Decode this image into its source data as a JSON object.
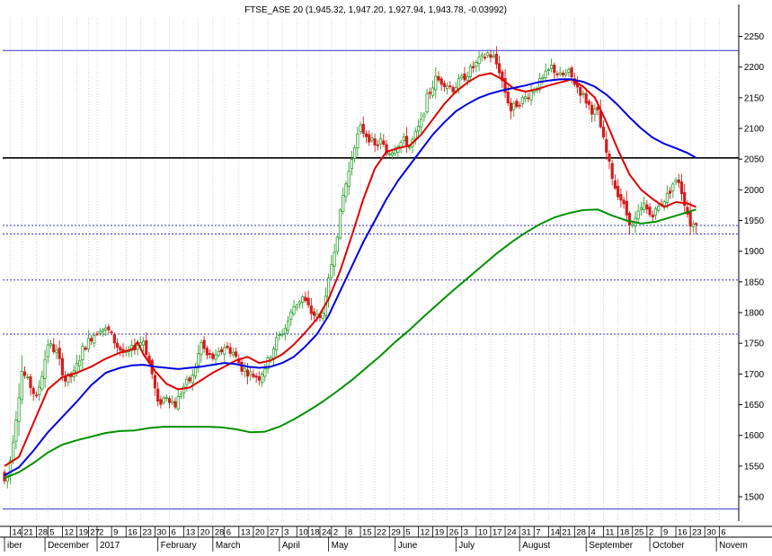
{
  "window": {
    "header_text": "FTSE_ASE 20 (1,945.32, 1,947.20, 1,927.94, 1,943.78, -0.03992)"
  },
  "colors": {
    "background": "#ffffff",
    "grid": "#b8b8b8",
    "bull_candle": "#2e9e2e",
    "bear_candle": "#d61c1c",
    "ma_short": "#e00000",
    "ma_mid": "#0000e0",
    "ma_long": "#009000",
    "hline_blue": "#3333cc",
    "hline_black": "#000000",
    "hline_dotted": "#3333cc"
  },
  "chart_data": {
    "type": "candlestick",
    "title": "FTSE_ASE 20 (1,945.32, 1,947.20, 1,927.94, 1,943.78, -0.03992)",
    "last_bar": {
      "open": 1945.32,
      "high": 1947.2,
      "low": 1927.94,
      "close": 1943.78,
      "change": -0.03992
    },
    "xlabel": "",
    "ylabel": "",
    "ylim": [
      1475,
      2260
    ],
    "y_ticks": [
      1500,
      1550,
      1600,
      1650,
      1700,
      1750,
      1800,
      1850,
      1900,
      1950,
      2000,
      2050,
      2100,
      2150,
      2200,
      2250
    ],
    "x_day_ticks": [
      {
        "label": "14",
        "slot": 2
      },
      {
        "label": "21",
        "slot": 6
      },
      {
        "label": "28",
        "slot": 11
      },
      {
        "label": "5",
        "slot": 15
      },
      {
        "label": "12",
        "slot": 20
      },
      {
        "label": "19",
        "slot": 25
      },
      {
        "label": "27",
        "slot": 29
      },
      {
        "label": "2",
        "slot": 32
      },
      {
        "label": "9",
        "slot": 37
      },
      {
        "label": "16",
        "slot": 42
      },
      {
        "label": "23",
        "slot": 47
      },
      {
        "label": "30",
        "slot": 52
      },
      {
        "label": "6",
        "slot": 57
      },
      {
        "label": "13",
        "slot": 62
      },
      {
        "label": "20",
        "slot": 67
      },
      {
        "label": "28",
        "slot": 72
      },
      {
        "label": "6",
        "slot": 76
      },
      {
        "label": "13",
        "slot": 81
      },
      {
        "label": "20",
        "slot": 86
      },
      {
        "label": "27",
        "slot": 91
      },
      {
        "label": "3",
        "slot": 96
      },
      {
        "label": "10",
        "slot": 101
      },
      {
        "label": "18",
        "slot": 105
      },
      {
        "label": "24",
        "slot": 109
      },
      {
        "label": "2",
        "slot": 113
      },
      {
        "label": "8",
        "slot": 118
      },
      {
        "label": "15",
        "slot": 123
      },
      {
        "label": "22",
        "slot": 128
      },
      {
        "label": "29",
        "slot": 133
      },
      {
        "label": "5",
        "slot": 138
      },
      {
        "label": "12",
        "slot": 143
      },
      {
        "label": "19",
        "slot": 148
      },
      {
        "label": "26",
        "slot": 153
      },
      {
        "label": "3",
        "slot": 158
      },
      {
        "label": "10",
        "slot": 163
      },
      {
        "label": "17",
        "slot": 168
      },
      {
        "label": "24",
        "slot": 173
      },
      {
        "label": "31",
        "slot": 178
      },
      {
        "label": "7",
        "slot": 183
      },
      {
        "label": "14",
        "slot": 188
      },
      {
        "label": "21",
        "slot": 192
      },
      {
        "label": "28",
        "slot": 197
      },
      {
        "label": "4",
        "slot": 202
      },
      {
        "label": "11",
        "slot": 207
      },
      {
        "label": "18",
        "slot": 212
      },
      {
        "label": "25",
        "slot": 217
      },
      {
        "label": "2",
        "slot": 222
      },
      {
        "label": "9",
        "slot": 227
      },
      {
        "label": "16",
        "slot": 232
      },
      {
        "label": "23",
        "slot": 237
      },
      {
        "label": "30",
        "slot": 242
      },
      {
        "label": "6",
        "slot": 247
      }
    ],
    "x_month_labels": [
      {
        "label": "iber",
        "slot": 0
      },
      {
        "label": "December",
        "slot": 14
      },
      {
        "label": "2017",
        "slot": 32
      },
      {
        "label": "February",
        "slot": 53
      },
      {
        "label": "March",
        "slot": 72
      },
      {
        "label": "April",
        "slot": 95
      },
      {
        "label": "May",
        "slot": 112
      },
      {
        "label": "June",
        "slot": 135
      },
      {
        "label": "July",
        "slot": 156
      },
      {
        "label": "August",
        "slot": 178
      },
      {
        "label": "September",
        "slot": 201
      },
      {
        "label": "October",
        "slot": 223
      },
      {
        "label": "Novem",
        "slot": 246
      }
    ],
    "horizontal_lines": [
      {
        "value": 2227,
        "style": "solid-blue"
      },
      {
        "value": 2052,
        "style": "solid-black"
      },
      {
        "value": 1942,
        "style": "dotted"
      },
      {
        "value": 1928,
        "style": "dotted"
      },
      {
        "value": 1853,
        "style": "dotted"
      },
      {
        "value": 1765,
        "style": "dotted"
      },
      {
        "value": 1480,
        "style": "solid-blue"
      }
    ],
    "anchors": [
      [
        0,
        1540
      ],
      [
        1,
        1525
      ],
      [
        2,
        1535
      ],
      [
        3,
        1560
      ],
      [
        5,
        1630
      ],
      [
        7,
        1705
      ],
      [
        10,
        1680
      ],
      [
        12,
        1660
      ],
      [
        14,
        1700
      ],
      [
        16,
        1750
      ],
      [
        19,
        1735
      ],
      [
        22,
        1690
      ],
      [
        25,
        1700
      ],
      [
        28,
        1740
      ],
      [
        31,
        1760
      ],
      [
        34,
        1775
      ],
      [
        37,
        1770
      ],
      [
        40,
        1745
      ],
      [
        43,
        1730
      ],
      [
        46,
        1745
      ],
      [
        49,
        1755
      ],
      [
        52,
        1700
      ],
      [
        54,
        1650
      ],
      [
        57,
        1665
      ],
      [
        60,
        1650
      ],
      [
        63,
        1680
      ],
      [
        66,
        1695
      ],
      [
        69,
        1750
      ],
      [
        71,
        1730
      ],
      [
        74,
        1725
      ],
      [
        77,
        1745
      ],
      [
        80,
        1735
      ],
      [
        83,
        1710
      ],
      [
        86,
        1700
      ],
      [
        89,
        1695
      ],
      [
        92,
        1720
      ],
      [
        95,
        1755
      ],
      [
        98,
        1775
      ],
      [
        101,
        1810
      ],
      [
        104,
        1825
      ],
      [
        107,
        1800
      ],
      [
        110,
        1790
      ],
      [
        112,
        1820
      ],
      [
        114,
        1880
      ],
      [
        116,
        1930
      ],
      [
        118,
        1990
      ],
      [
        120,
        2030
      ],
      [
        122,
        2075
      ],
      [
        124,
        2100
      ],
      [
        127,
        2085
      ],
      [
        129,
        2070
      ],
      [
        131,
        2080
      ],
      [
        133,
        2060
      ],
      [
        135,
        2065
      ],
      [
        137,
        2075
      ],
      [
        139,
        2080
      ],
      [
        141,
        2070
      ],
      [
        143,
        2090
      ],
      [
        145,
        2110
      ],
      [
        147,
        2150
      ],
      [
        150,
        2180
      ],
      [
        153,
        2175
      ],
      [
        156,
        2165
      ],
      [
        159,
        2180
      ],
      [
        162,
        2195
      ],
      [
        165,
        2210
      ],
      [
        168,
        2222
      ],
      [
        170,
        2215
      ],
      [
        172,
        2195
      ],
      [
        174,
        2160
      ],
      [
        176,
        2130
      ],
      [
        178,
        2140
      ],
      [
        181,
        2150
      ],
      [
        184,
        2165
      ],
      [
        187,
        2180
      ],
      [
        190,
        2200
      ],
      [
        193,
        2185
      ],
      [
        196,
        2190
      ],
      [
        198,
        2175
      ],
      [
        200,
        2160
      ],
      [
        202,
        2145
      ],
      [
        204,
        2130
      ],
      [
        206,
        2125
      ],
      [
        208,
        2080
      ],
      [
        210,
        2040
      ],
      [
        212,
        2005
      ],
      [
        214,
        1985
      ],
      [
        216,
        1960
      ],
      [
        218,
        1940
      ],
      [
        220,
        1960
      ],
      [
        222,
        1975
      ],
      [
        224,
        1960
      ],
      [
        226,
        1965
      ],
      [
        228,
        1980
      ],
      [
        230,
        1990
      ],
      [
        232,
        2010
      ],
      [
        234,
        2015
      ],
      [
        236,
        1980
      ],
      [
        237,
        1962
      ],
      [
        238,
        1945
      ],
      [
        239,
        1944
      ]
    ],
    "moving_averages": [
      {
        "name": "",
        "color": "#e00000",
        "points": [
          [
            0,
            1550
          ],
          [
            5,
            1565
          ],
          [
            10,
            1620
          ],
          [
            15,
            1675
          ],
          [
            20,
            1695
          ],
          [
            25,
            1702
          ],
          [
            30,
            1712
          ],
          [
            35,
            1725
          ],
          [
            40,
            1735
          ],
          [
            44,
            1740
          ],
          [
            46,
            1752
          ],
          [
            48,
            1732
          ],
          [
            52,
            1705
          ],
          [
            56,
            1684
          ],
          [
            60,
            1675
          ],
          [
            64,
            1678
          ],
          [
            68,
            1690
          ],
          [
            72,
            1702
          ],
          [
            76,
            1712
          ],
          [
            80,
            1722
          ],
          [
            84,
            1728
          ],
          [
            88,
            1718
          ],
          [
            92,
            1722
          ],
          [
            96,
            1732
          ],
          [
            100,
            1748
          ],
          [
            104,
            1768
          ],
          [
            108,
            1790
          ],
          [
            112,
            1822
          ],
          [
            116,
            1868
          ],
          [
            120,
            1925
          ],
          [
            124,
            1985
          ],
          [
            128,
            2035
          ],
          [
            132,
            2062
          ],
          [
            136,
            2068
          ],
          [
            140,
            2072
          ],
          [
            144,
            2090
          ],
          [
            148,
            2115
          ],
          [
            152,
            2140
          ],
          [
            156,
            2160
          ],
          [
            160,
            2175
          ],
          [
            164,
            2186
          ],
          [
            168,
            2190
          ],
          [
            172,
            2180
          ],
          [
            176,
            2165
          ],
          [
            180,
            2160
          ],
          [
            184,
            2164
          ],
          [
            188,
            2170
          ],
          [
            192,
            2175
          ],
          [
            196,
            2180
          ],
          [
            200,
            2168
          ],
          [
            204,
            2150
          ],
          [
            208,
            2110
          ],
          [
            212,
            2065
          ],
          [
            216,
            2025
          ],
          [
            220,
            2000
          ],
          [
            224,
            1985
          ],
          [
            228,
            1972
          ],
          [
            232,
            1980
          ],
          [
            236,
            1978
          ],
          [
            239,
            1972
          ]
        ]
      },
      {
        "name": "",
        "color": "#0000e0",
        "points": [
          [
            0,
            1535
          ],
          [
            5,
            1548
          ],
          [
            10,
            1575
          ],
          [
            15,
            1605
          ],
          [
            20,
            1630
          ],
          [
            25,
            1655
          ],
          [
            30,
            1682
          ],
          [
            35,
            1702
          ],
          [
            40,
            1710
          ],
          [
            44,
            1714
          ],
          [
            48,
            1715
          ],
          [
            52,
            1712
          ],
          [
            56,
            1710
          ],
          [
            60,
            1708
          ],
          [
            64,
            1710
          ],
          [
            68,
            1712
          ],
          [
            72,
            1715
          ],
          [
            76,
            1718
          ],
          [
            80,
            1716
          ],
          [
            84,
            1712
          ],
          [
            88,
            1710
          ],
          [
            92,
            1712
          ],
          [
            96,
            1718
          ],
          [
            100,
            1728
          ],
          [
            104,
            1745
          ],
          [
            108,
            1765
          ],
          [
            112,
            1795
          ],
          [
            116,
            1835
          ],
          [
            120,
            1875
          ],
          [
            124,
            1915
          ],
          [
            128,
            1950
          ],
          [
            132,
            1985
          ],
          [
            136,
            2015
          ],
          [
            140,
            2040
          ],
          [
            144,
            2065
          ],
          [
            148,
            2090
          ],
          [
            152,
            2110
          ],
          [
            156,
            2128
          ],
          [
            160,
            2140
          ],
          [
            164,
            2150
          ],
          [
            168,
            2157
          ],
          [
            172,
            2162
          ],
          [
            176,
            2166
          ],
          [
            180,
            2170
          ],
          [
            184,
            2175
          ],
          [
            188,
            2178
          ],
          [
            192,
            2180
          ],
          [
            196,
            2180
          ],
          [
            200,
            2176
          ],
          [
            204,
            2168
          ],
          [
            208,
            2155
          ],
          [
            212,
            2138
          ],
          [
            216,
            2118
          ],
          [
            220,
            2100
          ],
          [
            224,
            2085
          ],
          [
            228,
            2075
          ],
          [
            232,
            2068
          ],
          [
            236,
            2060
          ],
          [
            239,
            2052
          ]
        ]
      },
      {
        "name": "",
        "color": "#009000",
        "points": [
          [
            0,
            1530
          ],
          [
            5,
            1540
          ],
          [
            10,
            1555
          ],
          [
            15,
            1572
          ],
          [
            20,
            1585
          ],
          [
            25,
            1592
          ],
          [
            30,
            1598
          ],
          [
            35,
            1604
          ],
          [
            40,
            1607
          ],
          [
            45,
            1608
          ],
          [
            50,
            1612
          ],
          [
            55,
            1614
          ],
          [
            60,
            1614
          ],
          [
            65,
            1614
          ],
          [
            70,
            1614
          ],
          [
            75,
            1613
          ],
          [
            80,
            1610
          ],
          [
            85,
            1605
          ],
          [
            90,
            1606
          ],
          [
            95,
            1614
          ],
          [
            100,
            1626
          ],
          [
            105,
            1640
          ],
          [
            110,
            1655
          ],
          [
            115,
            1672
          ],
          [
            120,
            1690
          ],
          [
            125,
            1710
          ],
          [
            130,
            1730
          ],
          [
            135,
            1752
          ],
          [
            140,
            1772
          ],
          [
            145,
            1794
          ],
          [
            150,
            1815
          ],
          [
            155,
            1836
          ],
          [
            160,
            1856
          ],
          [
            165,
            1876
          ],
          [
            170,
            1896
          ],
          [
            175,
            1914
          ],
          [
            180,
            1930
          ],
          [
            185,
            1944
          ],
          [
            190,
            1955
          ],
          [
            195,
            1962
          ],
          [
            200,
            1967
          ],
          [
            205,
            1968
          ],
          [
            210,
            1958
          ],
          [
            215,
            1950
          ],
          [
            220,
            1945
          ],
          [
            225,
            1948
          ],
          [
            230,
            1955
          ],
          [
            235,
            1962
          ],
          [
            239,
            1968
          ]
        ]
      }
    ]
  }
}
